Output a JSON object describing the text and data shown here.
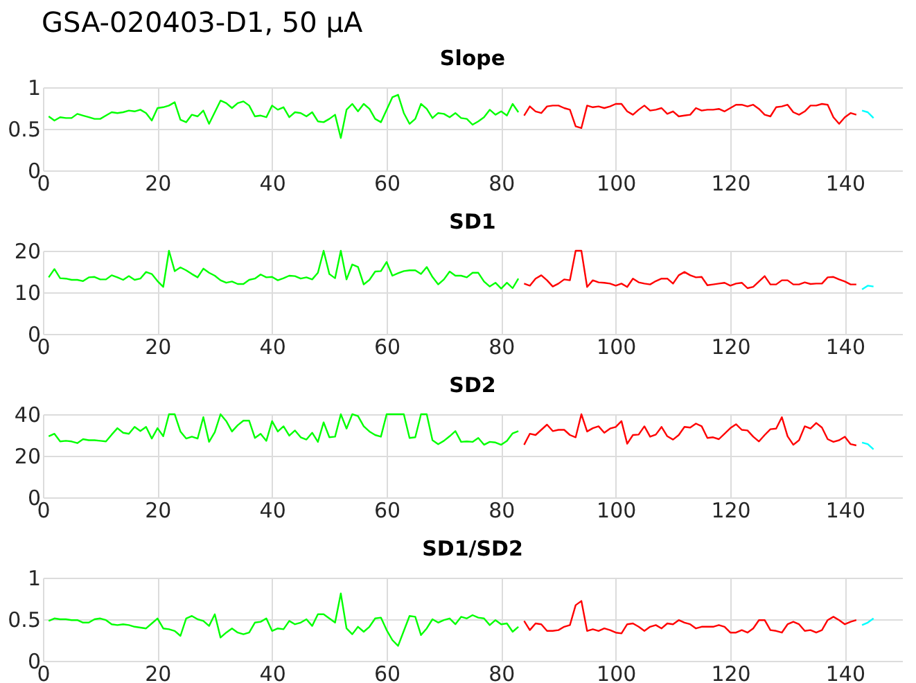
{
  "chart_data": [
    {
      "type": "line",
      "title": "GSA-020403-D1, 50 μA",
      "subtitle": "Slope",
      "xlim": [
        0,
        150
      ],
      "xticks": [
        0,
        20,
        40,
        60,
        80,
        100,
        120,
        140
      ],
      "ylim": [
        0,
        1
      ],
      "yticks": [
        0,
        0.5,
        1
      ],
      "grid": true,
      "series": [
        {
          "color": "#00ff00",
          "x": [
            1,
            2,
            3,
            4,
            5,
            6,
            7,
            8,
            9,
            10,
            11,
            12,
            13,
            14,
            15,
            16,
            17,
            18,
            19,
            20,
            21,
            22,
            23,
            24,
            25,
            26,
            27,
            28,
            29,
            30,
            31,
            32,
            33,
            34,
            35,
            36,
            37,
            38,
            39,
            40,
            41,
            42,
            43,
            44,
            45,
            46,
            47,
            48,
            49,
            50,
            51,
            52,
            53,
            54,
            55,
            56,
            57,
            58,
            59,
            60,
            61,
            62,
            63,
            64,
            65,
            66,
            67,
            68,
            69,
            70,
            71,
            72,
            73,
            74,
            75,
            76,
            77,
            78,
            79,
            80,
            81,
            82,
            83
          ],
          "values": [
            0.65,
            0.6,
            0.64,
            0.63,
            0.63,
            0.68,
            0.66,
            0.64,
            0.62,
            0.62,
            0.66,
            0.7,
            0.69,
            0.7,
            0.72,
            0.71,
            0.73,
            0.69,
            0.6,
            0.75,
            0.76,
            0.78,
            0.82,
            0.61,
            0.58,
            0.67,
            0.65,
            0.72,
            0.56,
            0.7,
            0.84,
            0.81,
            0.75,
            0.81,
            0.83,
            0.78,
            0.65,
            0.66,
            0.64,
            0.78,
            0.73,
            0.76,
            0.64,
            0.7,
            0.69,
            0.65,
            0.7,
            0.59,
            0.58,
            0.62,
            0.67,
            0.39,
            0.73,
            0.8,
            0.71,
            0.8,
            0.74,
            0.62,
            0.58,
            0.73,
            0.88,
            0.91,
            0.69,
            0.56,
            0.62,
            0.8,
            0.74,
            0.63,
            0.69,
            0.68,
            0.64,
            0.69,
            0.63,
            0.62,
            0.55,
            0.59,
            0.64,
            0.73,
            0.67,
            0.71,
            0.66,
            0.8,
            0.7
          ]
        },
        {
          "color": "#ff0000",
          "x": [
            84,
            85,
            86,
            87,
            88,
            89,
            90,
            91,
            92,
            93,
            94,
            95,
            96,
            97,
            98,
            99,
            100,
            101,
            102,
            103,
            104,
            105,
            106,
            107,
            108,
            109,
            110,
            111,
            112,
            113,
            114,
            115,
            116,
            117,
            118,
            119,
            120,
            121,
            122,
            123,
            124,
            125,
            126,
            127,
            128,
            129,
            130,
            131,
            132,
            133,
            134,
            135,
            136,
            137,
            138,
            139,
            140,
            141,
            142
          ],
          "values": [
            0.66,
            0.77,
            0.71,
            0.69,
            0.77,
            0.78,
            0.78,
            0.75,
            0.73,
            0.53,
            0.51,
            0.78,
            0.76,
            0.77,
            0.75,
            0.77,
            0.8,
            0.8,
            0.71,
            0.67,
            0.73,
            0.78,
            0.72,
            0.73,
            0.75,
            0.68,
            0.71,
            0.65,
            0.66,
            0.67,
            0.75,
            0.72,
            0.73,
            0.73,
            0.74,
            0.71,
            0.75,
            0.79,
            0.79,
            0.77,
            0.79,
            0.74,
            0.67,
            0.65,
            0.76,
            0.77,
            0.79,
            0.7,
            0.67,
            0.71,
            0.78,
            0.78,
            0.8,
            0.79,
            0.64,
            0.56,
            0.64,
            0.69,
            0.67
          ]
        },
        {
          "color": "#00ffff",
          "x": [
            143,
            144,
            145
          ],
          "values": [
            0.72,
            0.7,
            0.63
          ]
        }
      ]
    },
    {
      "type": "line",
      "subtitle": "SD1",
      "xlim": [
        0,
        150
      ],
      "xticks": [
        0,
        20,
        40,
        60,
        80,
        100,
        120,
        140
      ],
      "ylim": [
        0,
        20
      ],
      "yticks": [
        0,
        10,
        20
      ],
      "grid": true,
      "series": [
        {
          "color": "#00ff00",
          "x": [
            1,
            2,
            3,
            4,
            5,
            6,
            7,
            8,
            9,
            10,
            11,
            12,
            13,
            14,
            15,
            16,
            17,
            18,
            19,
            20,
            21,
            22,
            23,
            24,
            25,
            26,
            27,
            28,
            29,
            30,
            31,
            32,
            33,
            34,
            35,
            36,
            37,
            38,
            39,
            40,
            41,
            42,
            43,
            44,
            45,
            46,
            47,
            48,
            49,
            50,
            51,
            52,
            53,
            54,
            55,
            56,
            57,
            58,
            59,
            60,
            61,
            62,
            63,
            64,
            65,
            66,
            67,
            68,
            69,
            70,
            71,
            72,
            73,
            74,
            75,
            76,
            77,
            78,
            79,
            80,
            81,
            82,
            83
          ],
          "values": [
            13.6,
            15.6,
            13.4,
            13.3,
            13.0,
            13.0,
            12.7,
            13.6,
            13.7,
            13.1,
            13.1,
            14.1,
            13.6,
            13.0,
            13.9,
            13.0,
            13.3,
            14.9,
            14.4,
            12.7,
            11.3,
            20,
            15.1,
            16.0,
            15.3,
            14.4,
            13.6,
            15.7,
            14.7,
            14.0,
            12.9,
            12.3,
            12.6,
            12.0,
            12.0,
            13.0,
            13.3,
            14.3,
            13.6,
            13.7,
            12.9,
            13.4,
            14.0,
            13.9,
            13.3,
            13.6,
            13.1,
            14.7,
            20,
            14.4,
            13.4,
            20,
            13.1,
            16.7,
            16.1,
            11.9,
            13.0,
            15.0,
            15.1,
            17.3,
            14.0,
            14.6,
            15.1,
            15.3,
            15.3,
            14.4,
            16.1,
            13.7,
            11.9,
            13.1,
            15.0,
            14.0,
            14.0,
            13.6,
            14.7,
            14.7,
            12.6,
            11.4,
            12.3,
            10.9,
            12.3,
            11.0,
            13.3
          ]
        },
        {
          "color": "#ff0000",
          "x": [
            84,
            85,
            86,
            87,
            88,
            89,
            90,
            91,
            92,
            93,
            94,
            95,
            96,
            97,
            98,
            99,
            100,
            101,
            102,
            103,
            104,
            105,
            106,
            107,
            108,
            109,
            110,
            111,
            112,
            113,
            114,
            115,
            116,
            117,
            118,
            119,
            120,
            121,
            122,
            123,
            124,
            125,
            126,
            127,
            128,
            129,
            130,
            131,
            132,
            133,
            134,
            135,
            136,
            137,
            138,
            139,
            140,
            141,
            142
          ],
          "values": [
            12.1,
            11.6,
            13.3,
            14.1,
            12.9,
            11.4,
            12.1,
            13.1,
            12.9,
            20,
            20,
            11.3,
            12.9,
            12.4,
            12.3,
            12.1,
            11.6,
            12.1,
            11.3,
            13.3,
            12.4,
            12.1,
            11.9,
            12.7,
            13.3,
            13.3,
            12.1,
            14.1,
            14.9,
            14.1,
            13.6,
            13.7,
            11.7,
            11.9,
            12.1,
            12.3,
            11.6,
            12.1,
            12.3,
            11.0,
            11.3,
            12.6,
            13.9,
            11.9,
            11.9,
            12.9,
            12.9,
            11.9,
            11.9,
            12.4,
            12.0,
            12.1,
            12.1,
            13.6,
            13.7,
            13.1,
            12.6,
            11.9,
            11.9
          ]
        },
        {
          "color": "#00ffff",
          "x": [
            143,
            144,
            145
          ],
          "values": [
            10.7,
            11.6,
            11.4
          ]
        }
      ]
    },
    {
      "type": "line",
      "subtitle": "SD2",
      "xlim": [
        0,
        150
      ],
      "xticks": [
        0,
        20,
        40,
        60,
        80,
        100,
        120,
        140
      ],
      "ylim": [
        0,
        40
      ],
      "yticks": [
        0,
        20,
        40
      ],
      "grid": true,
      "series": [
        {
          "color": "#00ff00",
          "x": [
            1,
            2,
            3,
            4,
            5,
            6,
            7,
            8,
            9,
            10,
            11,
            12,
            13,
            14,
            15,
            16,
            17,
            18,
            19,
            20,
            21,
            22,
            23,
            24,
            25,
            26,
            27,
            28,
            29,
            30,
            31,
            32,
            33,
            34,
            35,
            36,
            37,
            38,
            39,
            40,
            41,
            42,
            43,
            44,
            45,
            46,
            47,
            48,
            49,
            50,
            51,
            52,
            53,
            54,
            55,
            56,
            57,
            58,
            59,
            60,
            61,
            62,
            63,
            64,
            65,
            66,
            67,
            68,
            69,
            70,
            71,
            72,
            73,
            74,
            75,
            76,
            77,
            78,
            79,
            80,
            81,
            82,
            83
          ],
          "values": [
            29.4,
            30.6,
            26.9,
            27.2,
            26.9,
            26.1,
            28.0,
            27.5,
            27.5,
            27.2,
            26.9,
            30.2,
            33.3,
            31.1,
            30.6,
            33.9,
            31.9,
            33.9,
            28.3,
            33.3,
            29.4,
            40,
            40,
            31.7,
            28.3,
            29.2,
            28.3,
            38.6,
            26.7,
            31.4,
            40,
            36.7,
            31.7,
            34.7,
            36.9,
            36.9,
            28.6,
            30.6,
            27.2,
            36.7,
            31.7,
            34.2,
            29.7,
            32.2,
            28.9,
            27.8,
            31.1,
            26.7,
            36.1,
            28.9,
            29.2,
            40,
            33.1,
            40,
            39.1,
            34.2,
            31.7,
            30.0,
            29.2,
            40,
            40,
            40,
            40,
            28.6,
            28.9,
            40,
            40,
            27.5,
            25.6,
            27.2,
            29.4,
            31.9,
            26.7,
            26.9,
            26.7,
            28.6,
            25.3,
            26.7,
            26.4,
            25.3,
            27.2,
            30.8,
            31.9
          ]
        },
        {
          "color": "#ff0000",
          "x": [
            84,
            85,
            86,
            87,
            88,
            89,
            90,
            91,
            92,
            93,
            94,
            95,
            96,
            97,
            98,
            99,
            100,
            101,
            102,
            103,
            104,
            105,
            106,
            107,
            108,
            109,
            110,
            111,
            112,
            113,
            114,
            115,
            116,
            117,
            118,
            119,
            120,
            121,
            122,
            123,
            124,
            125,
            126,
            127,
            128,
            129,
            130,
            131,
            132,
            133,
            134,
            135,
            136,
            137,
            138,
            139,
            140,
            141,
            142
          ],
          "values": [
            25.3,
            30.6,
            30.0,
            32.5,
            35.0,
            31.9,
            32.5,
            32.5,
            30.0,
            28.9,
            40,
            31.7,
            33.3,
            34.2,
            31.1,
            33.1,
            33.9,
            36.7,
            25.8,
            30.0,
            30.2,
            34.2,
            29.2,
            30.2,
            33.9,
            29.4,
            27.8,
            30.0,
            33.9,
            33.6,
            35.5,
            34.2,
            28.6,
            28.9,
            28.0,
            30.6,
            33.3,
            35.2,
            32.5,
            32.2,
            29.2,
            26.9,
            30.0,
            32.8,
            33.1,
            38.6,
            29.4,
            25.3,
            27.5,
            34.2,
            33.1,
            35.8,
            33.6,
            28.0,
            26.7,
            27.5,
            29.2,
            25.6,
            25.0
          ]
        },
        {
          "color": "#00ffff",
          "x": [
            143,
            144,
            145
          ],
          "values": [
            26.4,
            25.6,
            23.1
          ]
        }
      ]
    },
    {
      "type": "line",
      "subtitle": "SD1/SD2",
      "xlim": [
        0,
        150
      ],
      "xticks": [
        0,
        20,
        40,
        60,
        80,
        100,
        120,
        140
      ],
      "ylim": [
        0,
        1
      ],
      "yticks": [
        0,
        0.5,
        1
      ],
      "grid": true,
      "series": [
        {
          "color": "#00ff00",
          "x": [
            1,
            2,
            3,
            4,
            5,
            6,
            7,
            8,
            9,
            10,
            11,
            12,
            13,
            14,
            15,
            16,
            17,
            18,
            19,
            20,
            21,
            22,
            23,
            24,
            25,
            26,
            27,
            28,
            29,
            30,
            31,
            32,
            33,
            34,
            35,
            36,
            37,
            38,
            39,
            40,
            41,
            42,
            43,
            44,
            45,
            46,
            47,
            48,
            49,
            50,
            51,
            52,
            53,
            54,
            55,
            56,
            57,
            58,
            59,
            60,
            61,
            62,
            63,
            64,
            65,
            66,
            67,
            68,
            69,
            70,
            71,
            72,
            73,
            74,
            75,
            76,
            77,
            78,
            79,
            80,
            81,
            82,
            83
          ],
          "values": [
            0.48,
            0.51,
            0.5,
            0.5,
            0.49,
            0.49,
            0.46,
            0.46,
            0.5,
            0.51,
            0.49,
            0.44,
            0.43,
            0.44,
            0.43,
            0.41,
            0.4,
            0.39,
            0.45,
            0.51,
            0.39,
            0.38,
            0.36,
            0.3,
            0.51,
            0.54,
            0.5,
            0.48,
            0.42,
            0.56,
            0.28,
            0.34,
            0.39,
            0.34,
            0.32,
            0.34,
            0.46,
            0.47,
            0.51,
            0.36,
            0.39,
            0.38,
            0.48,
            0.44,
            0.46,
            0.5,
            0.42,
            0.56,
            0.56,
            0.51,
            0.46,
            0.81,
            0.39,
            0.32,
            0.41,
            0.35,
            0.41,
            0.51,
            0.52,
            0.37,
            0.25,
            0.18,
            0.36,
            0.54,
            0.53,
            0.31,
            0.39,
            0.5,
            0.46,
            0.49,
            0.51,
            0.44,
            0.53,
            0.51,
            0.55,
            0.52,
            0.51,
            0.43,
            0.49,
            0.44,
            0.45,
            0.35,
            0.41
          ]
        },
        {
          "color": "#ff0000",
          "x": [
            84,
            85,
            86,
            87,
            88,
            89,
            90,
            91,
            92,
            93,
            94,
            95,
            96,
            97,
            98,
            99,
            100,
            101,
            102,
            103,
            104,
            105,
            106,
            107,
            108,
            109,
            110,
            111,
            112,
            113,
            114,
            115,
            116,
            117,
            118,
            119,
            120,
            121,
            122,
            123,
            124,
            125,
            126,
            127,
            128,
            129,
            130,
            131,
            132,
            133,
            134,
            135,
            136,
            137,
            138,
            139,
            140,
            141,
            142
          ],
          "values": [
            0.48,
            0.37,
            0.45,
            0.44,
            0.36,
            0.36,
            0.37,
            0.41,
            0.43,
            0.67,
            0.72,
            0.36,
            0.38,
            0.36,
            0.39,
            0.37,
            0.34,
            0.33,
            0.44,
            0.45,
            0.41,
            0.36,
            0.41,
            0.43,
            0.39,
            0.45,
            0.44,
            0.49,
            0.46,
            0.44,
            0.39,
            0.41,
            0.41,
            0.41,
            0.43,
            0.41,
            0.34,
            0.34,
            0.37,
            0.34,
            0.39,
            0.49,
            0.49,
            0.37,
            0.36,
            0.34,
            0.44,
            0.47,
            0.44,
            0.36,
            0.37,
            0.34,
            0.37,
            0.49,
            0.53,
            0.49,
            0.44,
            0.47,
            0.49
          ]
        },
        {
          "color": "#00ffff",
          "x": [
            143,
            144,
            145
          ],
          "values": [
            0.43,
            0.46,
            0.51
          ]
        }
      ]
    }
  ]
}
